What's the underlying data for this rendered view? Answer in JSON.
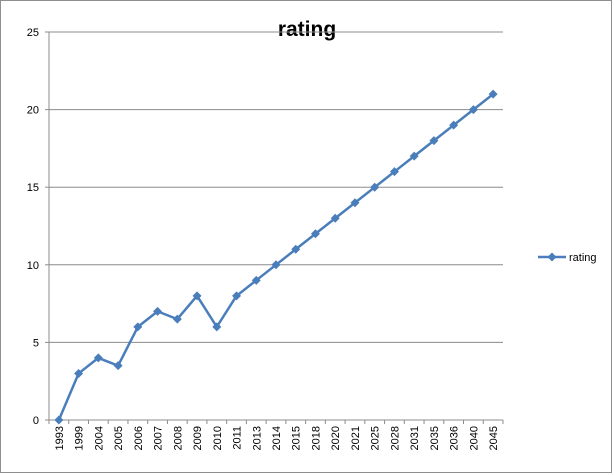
{
  "chart_data": {
    "type": "line",
    "title": "rating",
    "xlabel": "",
    "ylabel": "",
    "categories": [
      "1993",
      "1999",
      "2004",
      "2005",
      "2006",
      "2007",
      "2008",
      "2009",
      "2010",
      "2011",
      "2013",
      "2014",
      "2015",
      "2018",
      "2020",
      "2021",
      "2025",
      "2028",
      "2031",
      "2035",
      "2036",
      "2040",
      "2045"
    ],
    "series": [
      {
        "name": "rating",
        "values": [
          0,
          3,
          4,
          3.5,
          6,
          7,
          6.5,
          8,
          6,
          8,
          9,
          10,
          11,
          12,
          13,
          14,
          15,
          16,
          17,
          18,
          19,
          20,
          21
        ],
        "color": "#4a7ebb"
      }
    ],
    "ylim": [
      0,
      25
    ],
    "yticks": [
      0,
      5,
      10,
      15,
      20,
      25
    ],
    "grid": true,
    "legend": "right"
  }
}
